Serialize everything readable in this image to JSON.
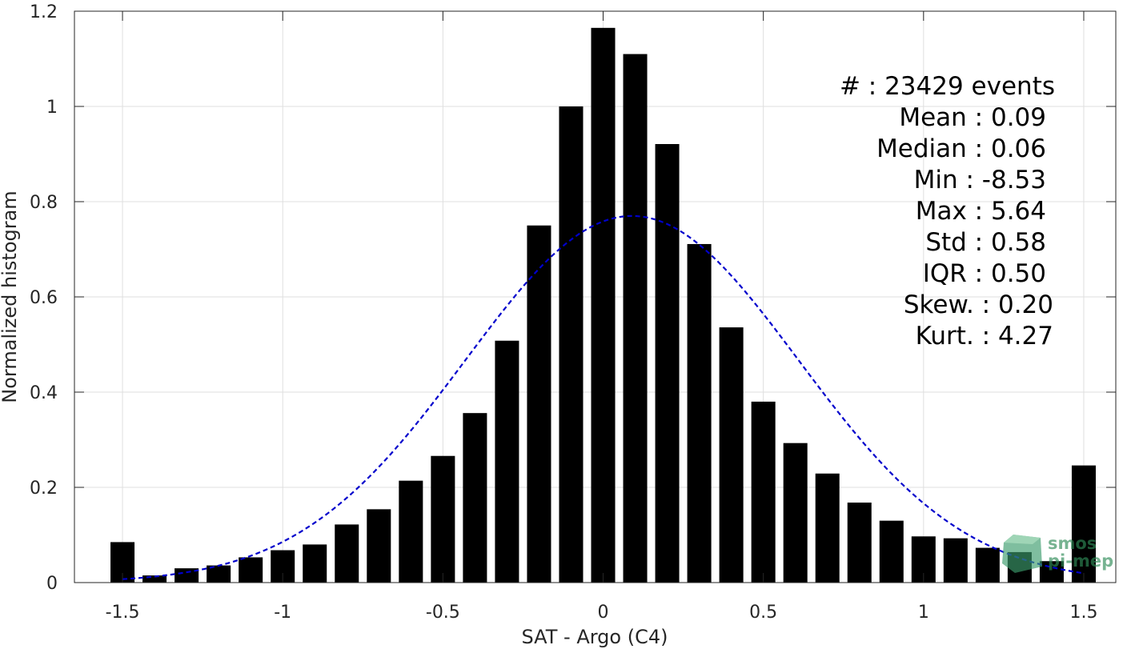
{
  "chart_data": {
    "type": "bar",
    "xlabel": "SAT - Argo (C4)",
    "ylabel": "Normalized histogram",
    "xlim": [
      -1.65,
      1.6
    ],
    "ylim": [
      0,
      1.2
    ],
    "grid": true,
    "x_ticks": [
      "-1.5",
      "-1",
      "-0.5",
      "0",
      "0.5",
      "1",
      "1.5"
    ],
    "y_ticks": [
      "0",
      "0.2",
      "0.4",
      "0.6",
      "0.8",
      "1",
      "1.2"
    ],
    "bar_width": 0.075,
    "bars": {
      "x": [
        -1.5,
        -1.4,
        -1.3,
        -1.2,
        -1.1,
        -1.0,
        -0.9,
        -0.8,
        -0.7,
        -0.6,
        -0.5,
        -0.4,
        -0.3,
        -0.2,
        -0.1,
        0.0,
        0.1,
        0.2,
        0.3,
        0.4,
        0.5,
        0.6,
        0.7,
        0.8,
        0.9,
        1.0,
        1.1,
        1.2,
        1.3,
        1.4,
        1.5
      ],
      "values": [
        0.085,
        0.015,
        0.03,
        0.036,
        0.053,
        0.068,
        0.08,
        0.122,
        0.154,
        0.214,
        0.266,
        0.356,
        0.508,
        0.75,
        1.0,
        1.165,
        1.11,
        0.921,
        0.711,
        0.536,
        0.38,
        0.293,
        0.229,
        0.168,
        0.13,
        0.097,
        0.093,
        0.073,
        0.064,
        0.045,
        0.246
      ],
      "color": "#000000"
    },
    "fit_curve": {
      "style": "dashed",
      "color": "#0000cc",
      "mean": 0.09,
      "std": 0.52,
      "peak": 0.77,
      "x_range": [
        -1.5,
        1.5
      ]
    },
    "annotations": [
      "#  : 23429 events",
      "Mean : 0.09",
      "Median : 0.06",
      "Min : -8.53",
      "Max : 5.64",
      "Std : 0.58",
      "IQR : 0.50",
      "Skew. : 0.20",
      "Kurt. : 4.27"
    ]
  },
  "watermark": {
    "line1": "smos",
    "line2": "pi-mep"
  }
}
